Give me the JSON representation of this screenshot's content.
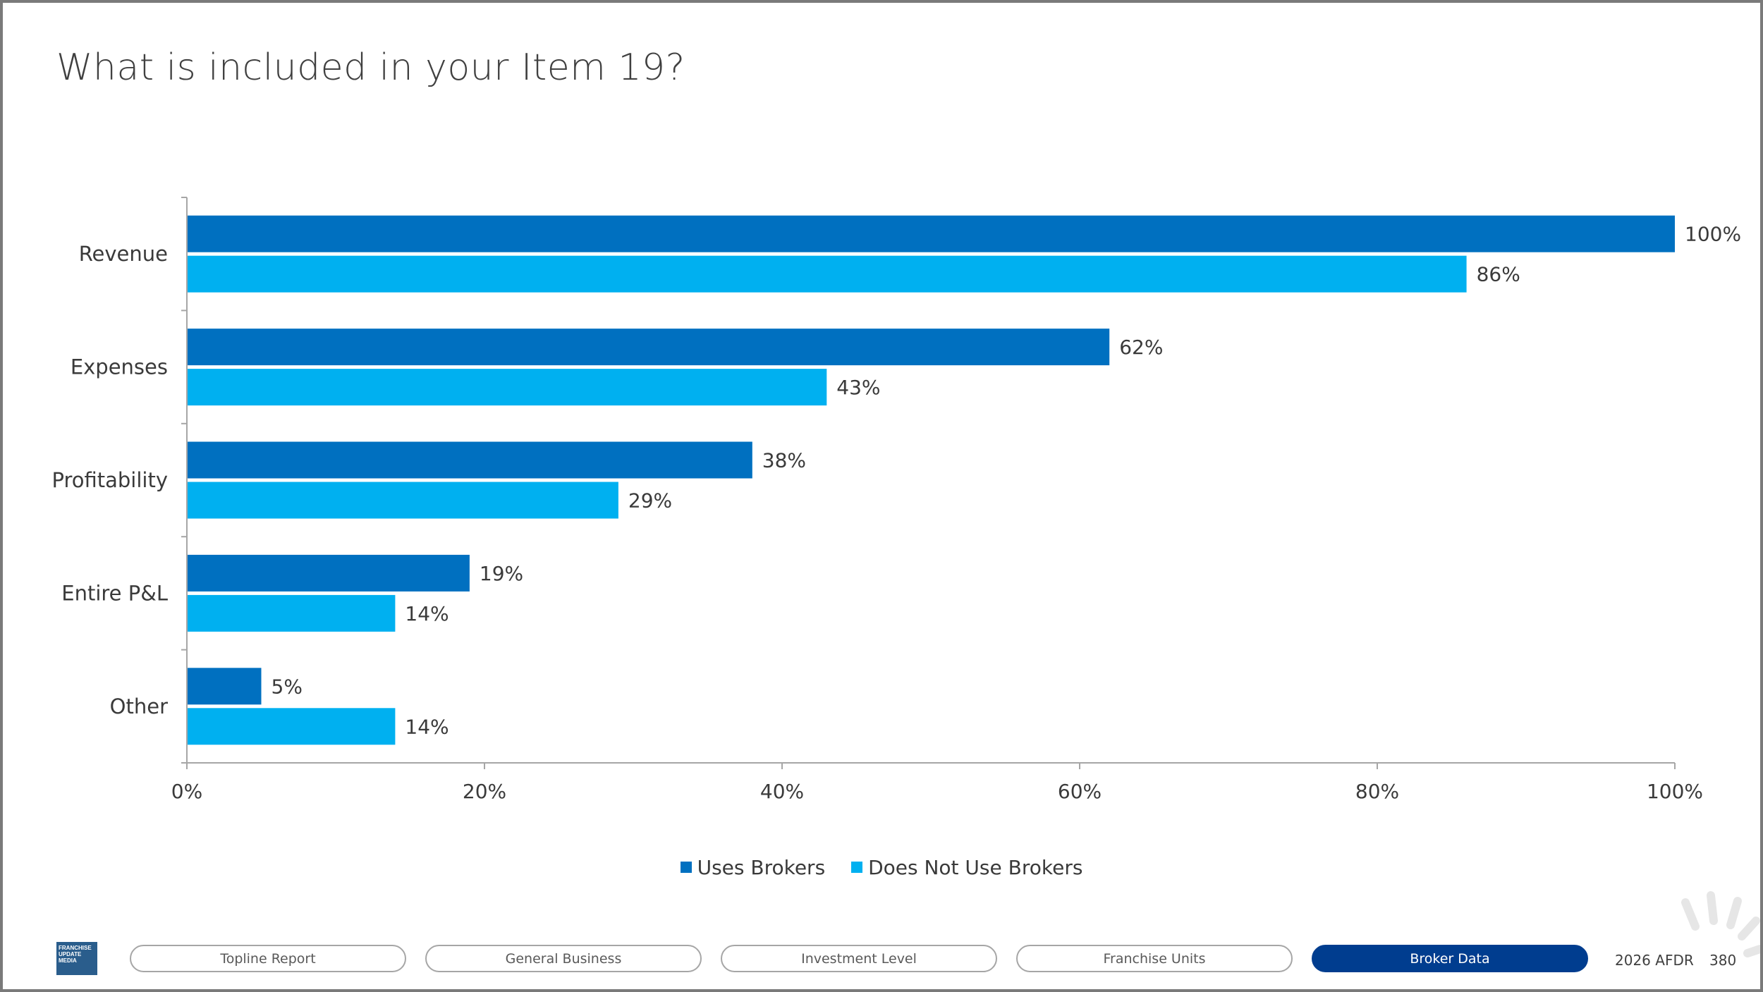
{
  "slide": {
    "title": "What is included in your Item 19?"
  },
  "colors": {
    "uses_brokers": "#0070c0",
    "does_not_use_brokers": "#00b0f0",
    "active_tab": "#003d8f",
    "axis": "#a6a6a6"
  },
  "chart_data": {
    "type": "bar",
    "orientation": "horizontal",
    "title": "",
    "xlabel": "",
    "ylabel": "",
    "categories": [
      "Revenue",
      "Expenses",
      "Profitability",
      "Entire P&L",
      "Other"
    ],
    "series": [
      {
        "name": "Uses Brokers",
        "values": [
          100,
          62,
          38,
          19,
          5
        ],
        "labels": [
          "100%",
          "62%",
          "38%",
          "19%",
          "5%"
        ]
      },
      {
        "name": "Does Not Use Brokers",
        "values": [
          86,
          43,
          29,
          14,
          14
        ],
        "labels": [
          "86%",
          "43%",
          "29%",
          "14%",
          "14%"
        ]
      }
    ],
    "xlim": [
      0,
      100
    ],
    "x_ticks": [
      0,
      20,
      40,
      60,
      80,
      100
    ],
    "x_tick_labels": [
      "0%",
      "20%",
      "40%",
      "60%",
      "80%",
      "100%"
    ],
    "grid": false,
    "legend": "bottom-center"
  },
  "footer": {
    "logo_text": "FRANCHISE\nUPDATE\nMEDIA",
    "tabs": [
      {
        "label": "Topline Report",
        "active": false
      },
      {
        "label": "General Business",
        "active": false
      },
      {
        "label": "Investment Level",
        "active": false
      },
      {
        "label": "Franchise Units",
        "active": false
      },
      {
        "label": "Broker Data",
        "active": true
      }
    ],
    "report_label": "2026 AFDR",
    "page_number": "380"
  },
  "icons": {
    "corner": "sunburst-decoration-icon"
  }
}
